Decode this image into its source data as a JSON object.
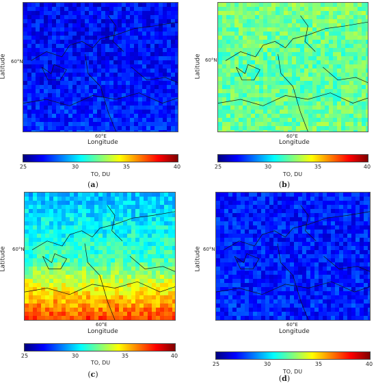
{
  "colorbar": {
    "ticks": [
      "25",
      "30",
      "35",
      "40"
    ],
    "unit_label": "TO, DU",
    "min": 25,
    "max": 40,
    "colormap": [
      "#00007f",
      "#0000ff",
      "#007fff",
      "#00ffff",
      "#7fff7f",
      "#ffff00",
      "#ff7f00",
      "#ff0000",
      "#7f0000"
    ]
  },
  "panels": [
    {
      "id": "a",
      "caption": "a",
      "xlabel": "Longitude",
      "ylabel": "Latitude",
      "xtick": "60°E",
      "ytick": "60°N",
      "mean_to_du": 27.0,
      "south_gradient": 0.5,
      "north_gradient": 0.0
    },
    {
      "id": "b",
      "caption": "b",
      "xlabel": "Longitude",
      "ylabel": "Latitude",
      "xtick": "60°E",
      "ytick": "60°N",
      "mean_to_du": 32.0,
      "south_gradient": 1.0,
      "north_gradient": 1.5
    },
    {
      "id": "c",
      "caption": "c",
      "xlabel": "Longitude",
      "ylabel": "Latitude",
      "xtick": "60°E",
      "ytick": "60°N",
      "mean_to_du": 31.5,
      "south_gradient": 6.0,
      "north_gradient": 0.0
    },
    {
      "id": "d",
      "caption": "d",
      "xlabel": "Longitude",
      "ylabel": "Latitude",
      "xtick": "60°E",
      "ytick": "60°N",
      "mean_to_du": 27.2,
      "south_gradient": 0.3,
      "north_gradient": 0.3
    }
  ]
}
